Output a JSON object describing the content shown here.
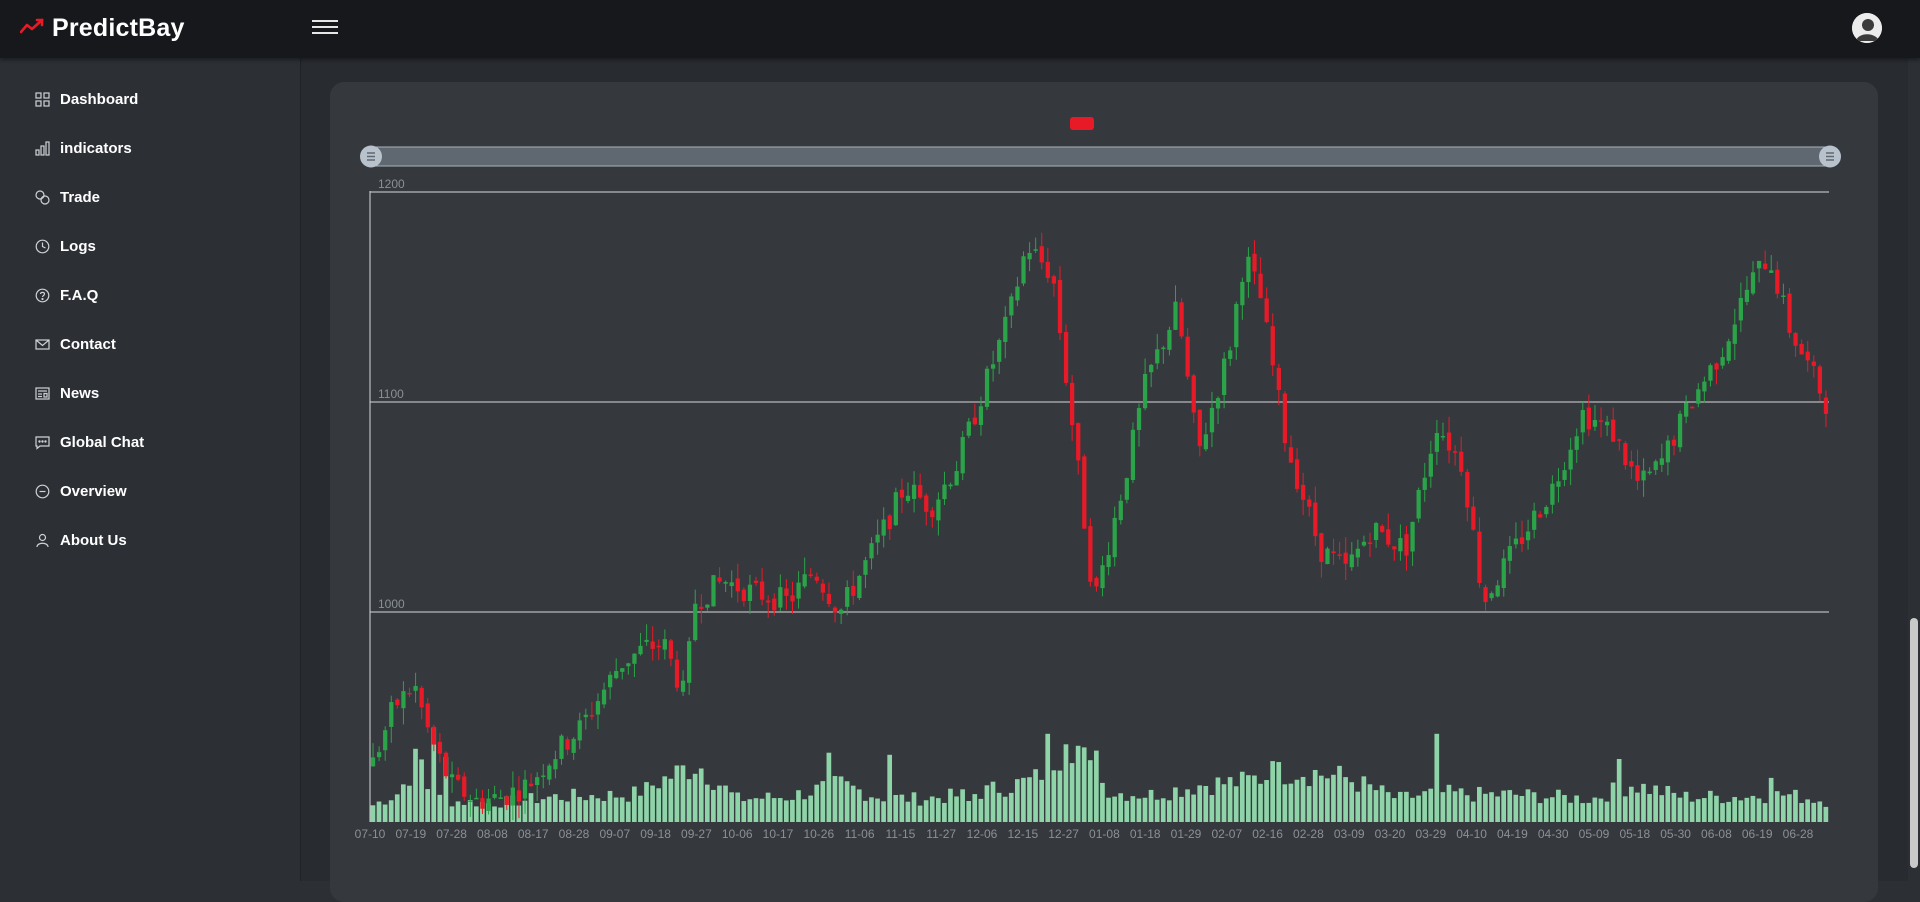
{
  "app": {
    "brand_name": "PredictBay",
    "brand_icon": "trend-line-icon",
    "brand_color": "#e81a27"
  },
  "topbar": {
    "menu_icon": "hamburger-icon",
    "user_icon": "user-avatar-icon"
  },
  "sidebar": {
    "items": [
      {
        "label": "Dashboard",
        "icon": "grid-icon"
      },
      {
        "label": "indicators",
        "icon": "bar-chart-icon"
      },
      {
        "label": "Trade",
        "icon": "coins-icon"
      },
      {
        "label": "Logs",
        "icon": "clock-icon"
      },
      {
        "label": "F.A.Q",
        "icon": "question-circle-icon"
      },
      {
        "label": "Contact",
        "icon": "envelope-icon"
      },
      {
        "label": "News",
        "icon": "newspaper-icon"
      },
      {
        "label": "Global Chat",
        "icon": "chat-icon"
      },
      {
        "label": "Overview",
        "icon": "minus-circle-icon"
      },
      {
        "label": "About Us",
        "icon": "person-icon"
      }
    ]
  },
  "colors": {
    "up": "#2ba348",
    "down": "#e81a27",
    "volume": "#8fd3a8",
    "grid": "#d8d8d8",
    "text_muted": "#8b9096"
  },
  "chart_data": {
    "type": "candlestick",
    "legend": [
      {
        "color": "#e81a27"
      }
    ],
    "ylim": [
      900,
      1200
    ],
    "y_ticks": [
      1000,
      1100,
      1200
    ],
    "x_tick_labels": [
      "07-10",
      "07-19",
      "07-28",
      "08-08",
      "08-17",
      "08-28",
      "09-07",
      "09-18",
      "09-27",
      "10-06",
      "10-17",
      "10-26",
      "11-06",
      "11-15",
      "11-27",
      "12-06",
      "12-15",
      "12-27",
      "01-08",
      "01-18",
      "01-29",
      "02-07",
      "02-16",
      "02-28",
      "03-09",
      "03-20",
      "03-29",
      "04-10",
      "04-19",
      "04-30",
      "05-09",
      "05-18",
      "05-30",
      "06-08",
      "06-19",
      "06-28"
    ],
    "zoom_range": [
      0,
      100
    ],
    "price_path": [
      [
        0,
        928
      ],
      [
        8,
        955
      ],
      [
        16,
        965
      ],
      [
        22,
        940
      ],
      [
        30,
        918
      ],
      [
        40,
        910
      ],
      [
        50,
        912
      ],
      [
        60,
        918
      ],
      [
        68,
        930
      ],
      [
        80,
        945
      ],
      [
        95,
        975
      ],
      [
        105,
        983
      ],
      [
        112,
        985
      ],
      [
        120,
        960
      ],
      [
        124,
        1005
      ],
      [
        135,
        1015
      ],
      [
        145,
        1010
      ],
      [
        160,
        1005
      ],
      [
        170,
        1020
      ],
      [
        180,
        1000
      ],
      [
        195,
        1035
      ],
      [
        205,
        1060
      ],
      [
        215,
        1050
      ],
      [
        225,
        1070
      ],
      [
        235,
        1105
      ],
      [
        245,
        1140
      ],
      [
        252,
        1175
      ],
      [
        262,
        1160
      ],
      [
        270,
        1085
      ],
      [
        278,
        1005
      ],
      [
        290,
        1065
      ],
      [
        298,
        1110
      ],
      [
        310,
        1145
      ],
      [
        318,
        1075
      ],
      [
        330,
        1125
      ],
      [
        336,
        1170
      ],
      [
        342,
        1150
      ],
      [
        352,
        1080
      ],
      [
        365,
        1030
      ],
      [
        375,
        1020
      ],
      [
        385,
        1040
      ],
      [
        398,
        1030
      ],
      [
        410,
        1090
      ],
      [
        420,
        1070
      ],
      [
        428,
        1005
      ],
      [
        440,
        1030
      ],
      [
        455,
        1060
      ],
      [
        466,
        1095
      ],
      [
        478,
        1085
      ],
      [
        488,
        1060
      ],
      [
        496,
        1070
      ],
      [
        508,
        1100
      ],
      [
        520,
        1125
      ],
      [
        530,
        1155
      ],
      [
        538,
        1170
      ],
      [
        546,
        1135
      ],
      [
        552,
        1120
      ],
      [
        560,
        1100
      ]
    ],
    "volume_path": [
      [
        0,
        8
      ],
      [
        10,
        14
      ],
      [
        18,
        32
      ],
      [
        22,
        12
      ],
      [
        30,
        10
      ],
      [
        45,
        9
      ],
      [
        55,
        10
      ],
      [
        70,
        12
      ],
      [
        100,
        13
      ],
      [
        125,
        28
      ],
      [
        140,
        11
      ],
      [
        160,
        12
      ],
      [
        180,
        18
      ],
      [
        195,
        12
      ],
      [
        210,
        11
      ],
      [
        230,
        13
      ],
      [
        255,
        20
      ],
      [
        264,
        33
      ],
      [
        270,
        40
      ],
      [
        276,
        25
      ],
      [
        285,
        14
      ],
      [
        300,
        13
      ],
      [
        320,
        18
      ],
      [
        335,
        19
      ],
      [
        355,
        25
      ],
      [
        375,
        21
      ],
      [
        395,
        11
      ],
      [
        410,
        14
      ],
      [
        425,
        13
      ],
      [
        440,
        13
      ],
      [
        455,
        12
      ],
      [
        470,
        11
      ],
      [
        485,
        18
      ],
      [
        505,
        12
      ],
      [
        525,
        12
      ],
      [
        545,
        13
      ],
      [
        560,
        10
      ]
    ],
    "volume_spikes": [
      [
        24,
        45
      ],
      [
        28,
        31
      ],
      [
        105,
        19
      ],
      [
        175,
        33
      ],
      [
        200,
        32
      ],
      [
        230,
        10
      ],
      [
        260,
        42
      ],
      [
        266,
        37
      ],
      [
        278,
        34
      ],
      [
        346,
        29
      ],
      [
        411,
        42
      ],
      [
        480,
        30
      ],
      [
        540,
        21
      ]
    ]
  }
}
